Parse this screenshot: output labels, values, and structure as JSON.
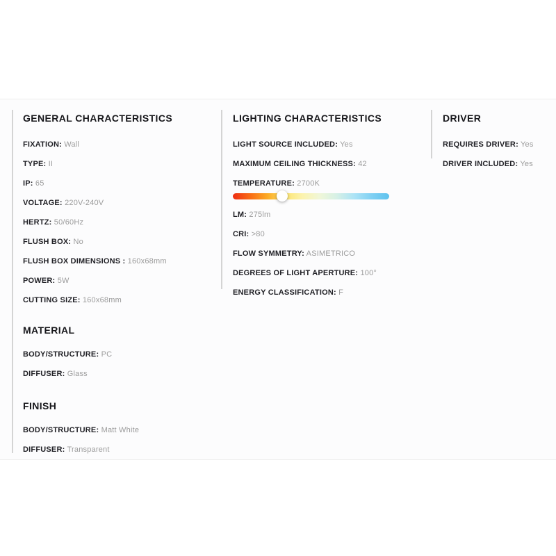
{
  "colors": {
    "divider": "#ececec",
    "column_border": "#d4d4d4",
    "label": "#212126",
    "value": "#9b9b9b"
  },
  "general": {
    "title": "GENERAL CHARACTERISTICS",
    "items": [
      {
        "label": "FIXATION:",
        "value": "Wall"
      },
      {
        "label": "TYPE:",
        "value": "II"
      },
      {
        "label": "IP:",
        "value": "65"
      },
      {
        "label": "VOLTAGE:",
        "value": "220V-240V"
      },
      {
        "label": "HERTZ:",
        "value": "50/60Hz"
      },
      {
        "label": "FLUSH BOX:",
        "value": "No"
      },
      {
        "label": "FLUSH BOX DIMENSIONS :",
        "value": "160x68mm"
      },
      {
        "label": "POWER:",
        "value": "5W"
      },
      {
        "label": "CUTTING SIZE:",
        "value": "160x68mm"
      }
    ]
  },
  "lighting": {
    "title": "LIGHTING CHARACTERISTICS",
    "items_top": [
      {
        "label": "LIGHT SOURCE INCLUDED:",
        "value": "Yes"
      },
      {
        "label": "MAXIMUM CEILING THICKNESS:",
        "value": "42"
      }
    ],
    "temperature": {
      "label": "TEMPERATURE:",
      "value": "2700K",
      "slider_position_pct": 31.5,
      "gradient": [
        "#ee2d14",
        "#f96c15",
        "#fcab25",
        "#fde571",
        "#fcf3ae",
        "#f0f7d8",
        "#d5f0e6",
        "#abe3f6",
        "#7fd0f3",
        "#5ec2ee"
      ]
    },
    "items_bottom": [
      {
        "label": "LM:",
        "value": "275lm"
      },
      {
        "label": "CRI:",
        "value": ">80"
      },
      {
        "label": "FLOW SYMMETRY:",
        "value": "ASIMETRICO"
      },
      {
        "label": "DEGREES OF LIGHT APERTURE:",
        "value": "100°"
      },
      {
        "label": "ENERGY CLASSIFICATION:",
        "value": "F"
      }
    ]
  },
  "driver": {
    "title": "DRIVER",
    "items": [
      {
        "label": "REQUIRES DRIVER:",
        "value": "Yes"
      },
      {
        "label": "DRIVER INCLUDED:",
        "value": "Yes"
      }
    ]
  },
  "material": {
    "title": "MATERIAL",
    "items": [
      {
        "label": "BODY/STRUCTURE:",
        "value": "PC"
      },
      {
        "label": "DIFFUSER:",
        "value": "Glass"
      }
    ]
  },
  "finish": {
    "title": "FINISH",
    "items": [
      {
        "label": "BODY/STRUCTURE:",
        "value": "Matt White"
      },
      {
        "label": "DIFFUSER:",
        "value": "Transparent"
      }
    ]
  }
}
